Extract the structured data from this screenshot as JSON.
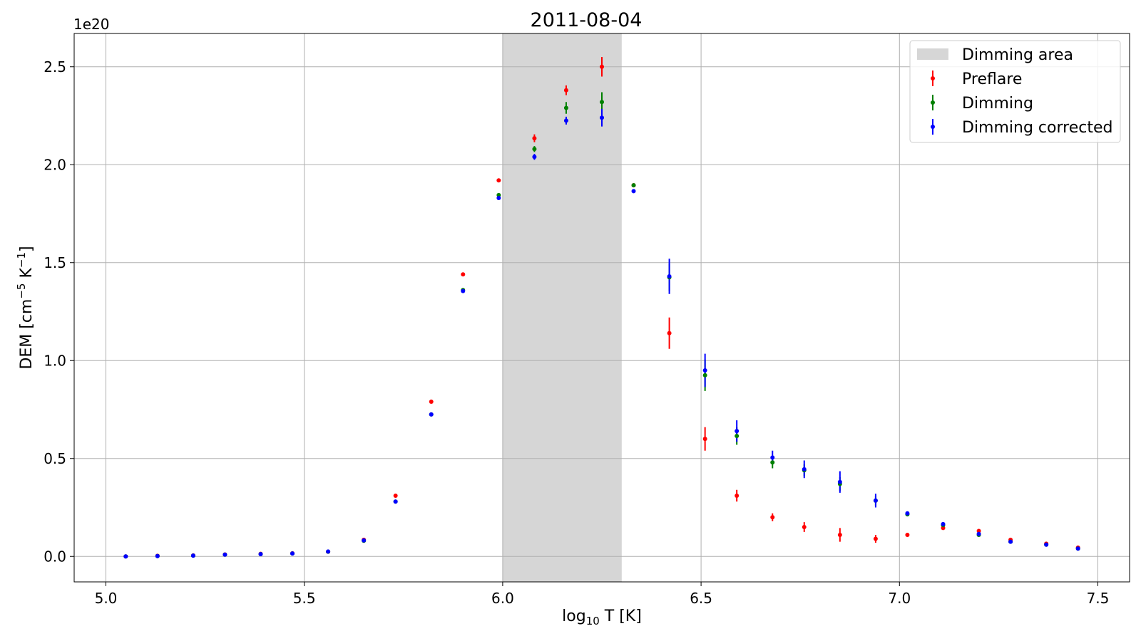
{
  "chart_data": {
    "type": "scatter",
    "title": "2011-08-04",
    "xlabel": {
      "main": "log",
      "sub": "10",
      "rest": " T [K]"
    },
    "ylabel": {
      "main": "DEM [cm",
      "sup1": "−5",
      "mid": " K",
      "sup2": "−1",
      "end": "]"
    },
    "y_offset_text": "1e20",
    "xlim": [
      4.92,
      7.58
    ],
    "ylim": [
      -0.13,
      2.67
    ],
    "y_unit_scale": "1e20",
    "xticks": [
      5.0,
      5.5,
      6.0,
      6.5,
      7.0,
      7.5
    ],
    "xtick_labels": [
      "5.0",
      "5.5",
      "6.0",
      "6.5",
      "7.0",
      "7.5"
    ],
    "yticks": [
      0.0,
      0.5,
      1.0,
      1.5,
      2.0,
      2.5
    ],
    "ytick_labels": [
      "0.0",
      "0.5",
      "1.0",
      "1.5",
      "2.0",
      "2.5"
    ],
    "grid": true,
    "legend_position": "top-right",
    "shaded_region": {
      "name": "Dimming area",
      "x_range": [
        6.0,
        6.3
      ],
      "color": "#d6d6d6"
    },
    "x": [
      5.05,
      5.13,
      5.22,
      5.3,
      5.39,
      5.47,
      5.56,
      5.65,
      5.73,
      5.82,
      5.9,
      5.99,
      6.08,
      6.16,
      6.25,
      6.33,
      6.42,
      6.51,
      6.59,
      6.68,
      6.76,
      6.85,
      6.94,
      7.02,
      7.11,
      7.2,
      7.28,
      7.37,
      7.45
    ],
    "series": [
      {
        "name": "Preflare",
        "color": "#ff0000",
        "values": [
          0.0,
          0.003,
          0.005,
          0.01,
          0.013,
          0.016,
          0.024,
          0.085,
          0.31,
          0.79,
          1.44,
          1.92,
          2.135,
          2.38,
          2.5,
          1.895,
          1.14,
          0.6,
          0.31,
          0.2,
          0.15,
          0.11,
          0.09,
          0.11,
          0.145,
          0.13,
          0.085,
          0.065,
          0.045
        ],
        "errors": [
          0.0,
          0.0,
          0.0,
          0.0,
          0.0,
          0.0,
          0.0,
          0.0,
          0.0,
          0.0,
          0.0,
          0.0,
          0.02,
          0.025,
          0.05,
          0.0,
          0.08,
          0.06,
          0.03,
          0.02,
          0.025,
          0.035,
          0.02,
          0.0,
          0.0,
          0.0,
          0.0,
          0.0,
          0.0
        ]
      },
      {
        "name": "Dimming",
        "color": "#008000",
        "values": [
          0.0,
          0.002,
          0.004,
          0.009,
          0.012,
          0.015,
          0.024,
          0.08,
          0.28,
          0.725,
          1.36,
          1.845,
          2.08,
          2.29,
          2.32,
          1.895,
          1.425,
          0.925,
          0.615,
          0.48,
          0.44,
          0.37,
          0.285,
          0.215,
          0.16,
          0.11,
          0.075,
          0.06,
          0.04
        ],
        "errors": [
          0.0,
          0.0,
          0.0,
          0.0,
          0.0,
          0.0,
          0.0,
          0.0,
          0.0,
          0.0,
          0.0,
          0.0,
          0.015,
          0.03,
          0.05,
          0.0,
          0.07,
          0.08,
          0.045,
          0.03,
          0.03,
          0.035,
          0.025,
          0.0,
          0.0,
          0.0,
          0.0,
          0.0,
          0.0
        ]
      },
      {
        "name": "Dimming corrected",
        "color": "#0000ff",
        "values": [
          0.0,
          0.002,
          0.004,
          0.009,
          0.012,
          0.015,
          0.025,
          0.082,
          0.28,
          0.725,
          1.355,
          1.83,
          2.04,
          2.225,
          2.24,
          1.865,
          1.43,
          0.95,
          0.64,
          0.505,
          0.445,
          0.38,
          0.285,
          0.22,
          0.165,
          0.115,
          0.075,
          0.06,
          0.04
        ],
        "errors": [
          0.0,
          0.0,
          0.0,
          0.0,
          0.0,
          0.0,
          0.0,
          0.0,
          0.0,
          0.0,
          0.0,
          0.0,
          0.015,
          0.02,
          0.045,
          0.0,
          0.09,
          0.085,
          0.055,
          0.035,
          0.045,
          0.055,
          0.035,
          0.0,
          0.0,
          0.0,
          0.0,
          0.0,
          0.0
        ]
      }
    ]
  }
}
